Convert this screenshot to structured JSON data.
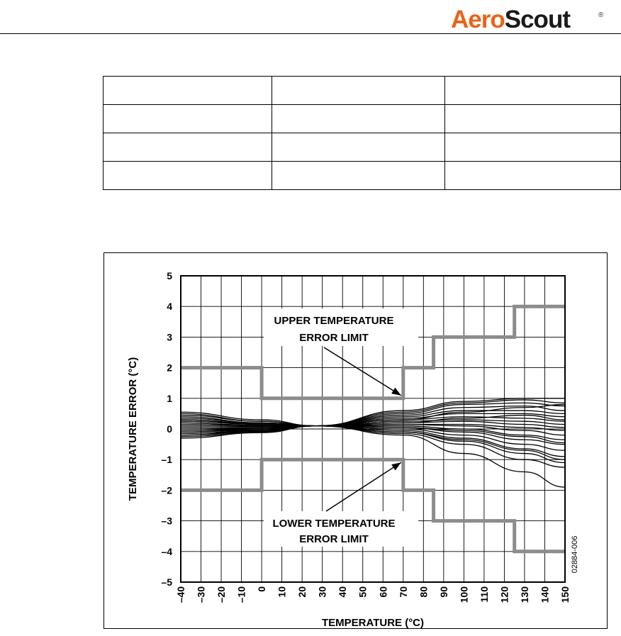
{
  "header": {
    "logo_text_accent": "Aero",
    "logo_text_main": "Scout",
    "logo_registered_mark": "®",
    "logo_accent_color": "#e8641b"
  },
  "table": {
    "rows": [
      [
        "",
        "",
        ""
      ],
      [
        "",
        "",
        ""
      ],
      [
        "",
        "",
        ""
      ],
      [
        "",
        "",
        ""
      ]
    ]
  },
  "chart_data": {
    "type": "line",
    "xlabel": "TEMPERATURE (°C)",
    "ylabel": "TEMPERATURE ERROR (°C)",
    "xlim": [
      -40,
      150
    ],
    "ylim": [
      -5,
      5
    ],
    "x_ticks": [
      -40,
      -30,
      -20,
      -10,
      0,
      10,
      20,
      30,
      40,
      50,
      60,
      70,
      80,
      90,
      100,
      110,
      120,
      130,
      140,
      150
    ],
    "x_tick_labels": [
      "–40",
      "–30",
      "–20",
      "–10",
      "0",
      "10",
      "20",
      "30",
      "40",
      "50",
      "60",
      "70",
      "80",
      "90",
      "100",
      "110",
      "120",
      "130",
      "140",
      "150"
    ],
    "y_ticks": [
      5,
      4,
      3,
      2,
      1,
      0,
      -1,
      -2,
      -3,
      -4,
      -5
    ],
    "y_tick_labels": [
      "5",
      "4",
      "3",
      "2",
      "1",
      "0",
      "–1",
      "–2",
      "–3",
      "–4",
      "–5"
    ],
    "grid": true,
    "figure_code": "02884-006",
    "limit_color": "#8c8c8c",
    "curve_color": "#000000",
    "upper_limit": {
      "name": "UPPER TEMPERATURE ERROR LIMIT",
      "x": [
        -40,
        0,
        0,
        70,
        70,
        85,
        85,
        125,
        125,
        150
      ],
      "y": [
        2,
        2,
        1,
        1,
        2,
        2,
        3,
        3,
        4,
        4
      ]
    },
    "lower_limit": {
      "name": "LOWER TEMPERATURE ERROR LIMIT",
      "x": [
        -40,
        0,
        0,
        70,
        70,
        85,
        85,
        125,
        125,
        150
      ],
      "y": [
        -2,
        -2,
        -1,
        -1,
        -2,
        -2,
        -3,
        -3,
        -4,
        -4
      ]
    },
    "annotations": [
      {
        "lines": [
          "UPPER TEMPERATURE",
          "ERROR LIMIT"
        ],
        "target_x": 70,
        "target_y": 1
      },
      {
        "lines": [
          "LOWER TEMPERATURE",
          "ERROR LIMIT"
        ],
        "target_x": 70,
        "target_y": -1
      }
    ],
    "curve_x": [
      -40,
      0,
      27,
      70,
      100,
      130,
      150
    ],
    "series": [
      {
        "values": [
          0.55,
          0.3,
          0.1,
          -0.2,
          -0.8,
          -1.4,
          -1.9
        ]
      },
      {
        "values": [
          0.5,
          0.25,
          0.1,
          -0.15,
          -0.5,
          -1.0,
          -1.25
        ]
      },
      {
        "values": [
          0.45,
          0.25,
          0.1,
          -0.1,
          -0.4,
          -0.8,
          -1.1
        ]
      },
      {
        "values": [
          0.4,
          0.2,
          0.1,
          -0.05,
          -0.3,
          -0.65,
          -0.9
        ]
      },
      {
        "values": [
          0.35,
          0.2,
          0.1,
          0.0,
          -0.2,
          -0.5,
          -0.7
        ]
      },
      {
        "values": [
          0.3,
          0.15,
          0.1,
          0.05,
          -0.1,
          -0.35,
          -0.5
        ]
      },
      {
        "values": [
          0.25,
          0.15,
          0.1,
          0.1,
          0.0,
          -0.2,
          -0.35
        ]
      },
      {
        "values": [
          0.2,
          0.12,
          0.1,
          0.15,
          0.1,
          -0.05,
          -0.2
        ]
      },
      {
        "values": [
          0.15,
          0.1,
          0.1,
          0.15,
          0.15,
          0.05,
          -0.05
        ]
      },
      {
        "values": [
          0.1,
          0.08,
          0.1,
          0.2,
          0.25,
          0.15,
          0.05
        ]
      },
      {
        "values": [
          0.05,
          0.05,
          0.1,
          0.25,
          0.3,
          0.25,
          0.15
        ]
      },
      {
        "values": [
          0.0,
          0.03,
          0.1,
          0.3,
          0.4,
          0.35,
          0.25
        ]
      },
      {
        "values": [
          -0.05,
          0.0,
          0.1,
          0.35,
          0.5,
          0.5,
          0.4
        ]
      },
      {
        "values": [
          -0.1,
          -0.03,
          0.1,
          0.4,
          0.6,
          0.6,
          0.5
        ]
      },
      {
        "values": [
          -0.15,
          -0.05,
          0.1,
          0.45,
          0.7,
          0.75,
          0.6
        ]
      },
      {
        "values": [
          -0.2,
          -0.08,
          0.1,
          0.5,
          0.8,
          0.85,
          0.75
        ]
      },
      {
        "values": [
          -0.25,
          -0.1,
          0.1,
          0.55,
          0.85,
          0.95,
          0.85
        ]
      },
      {
        "values": [
          -0.3,
          -0.12,
          0.1,
          0.6,
          0.9,
          1.0,
          1.0
        ]
      },
      {
        "values": [
          0.3,
          0.18,
          0.1,
          -0.1,
          -0.35,
          -0.7,
          -1.0
        ]
      },
      {
        "values": [
          -0.2,
          -0.05,
          0.1,
          0.3,
          0.55,
          0.7,
          0.8
        ]
      },
      {
        "values": [
          0.2,
          0.1,
          0.1,
          0.05,
          -0.05,
          -0.25,
          -0.45
        ]
      },
      {
        "values": [
          -0.1,
          0.0,
          0.1,
          0.2,
          0.35,
          0.45,
          0.3
        ]
      }
    ]
  }
}
